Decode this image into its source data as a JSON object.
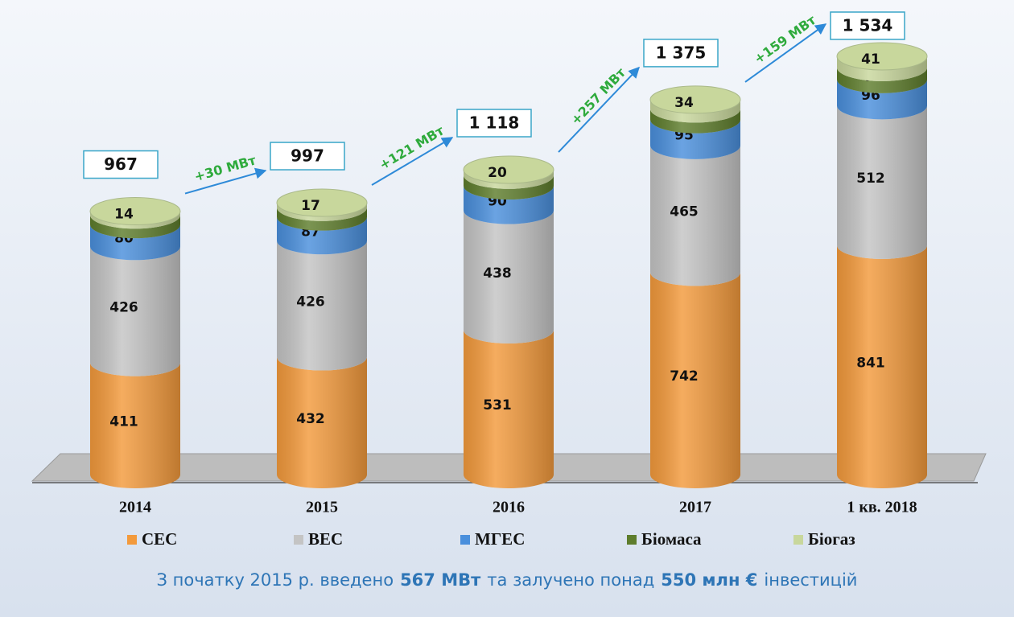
{
  "chart_data": {
    "type": "stacked-cylinder",
    "categories": [
      "2014",
      "2015",
      "2016",
      "2017",
      "1 кв. 2018"
    ],
    "series": [
      {
        "name": "СЕС",
        "color": "#f39a3c",
        "values": [
          411,
          432,
          531,
          742,
          841
        ]
      },
      {
        "name": "ВЕС",
        "color": "#c4c4c4",
        "values": [
          426,
          426,
          438,
          465,
          512
        ]
      },
      {
        "name": "МГЕС",
        "color": "#4a8fdc",
        "values": [
          80,
          87,
          90,
          95,
          96
        ]
      },
      {
        "name": "Біомаса",
        "color": "#5e7d2c",
        "values": [
          35,
          35,
          39,
          39,
          44
        ]
      },
      {
        "name": "Біогаз",
        "color": "#c8d79c",
        "values": [
          14,
          17,
          20,
          34,
          41
        ]
      }
    ],
    "totals": {
      "values": [
        967,
        997,
        1118,
        1375,
        1534
      ],
      "value_labels": [
        "967",
        "997",
        "1 118",
        "1 375",
        "1 534"
      ]
    },
    "annotations": [
      "+30 МВт",
      "+121 МВт",
      "+257 МВт",
      "+159 МВт"
    ],
    "footer": [
      "З початку 2015 р. введено",
      "567 МВт",
      "та залучено понад",
      "550 млн €",
      "інвестицій"
    ],
    "legend": "bottom"
  }
}
